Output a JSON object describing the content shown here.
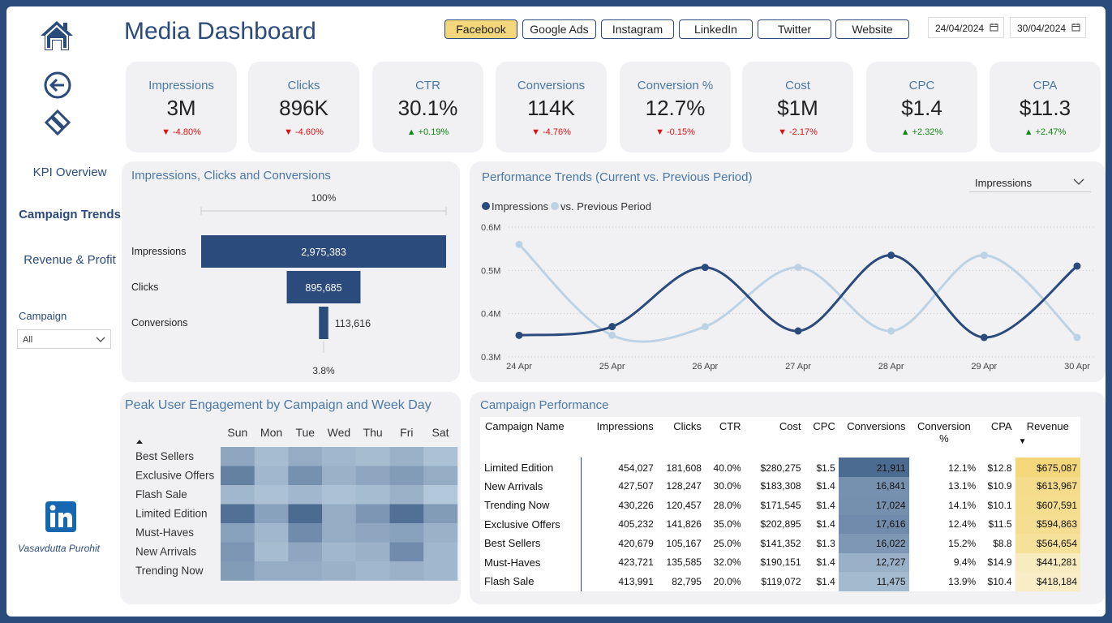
{
  "header": {
    "title": "Media Dashboard"
  },
  "sidebar": {
    "nav": [
      "KPI Overview",
      "Campaign Trends",
      "Revenue & Profit"
    ],
    "campaign_label": "Campaign",
    "campaign_value": "All",
    "author": "Vasavdutta Purohit",
    "icons": [
      "home-icon",
      "back-arrow-icon",
      "eraser-icon",
      "linkedin-icon"
    ]
  },
  "platforms": [
    "Facebook",
    "Google Ads",
    "Instagram",
    "LinkedIn",
    "Twitter",
    "Website"
  ],
  "platform_active": "Facebook",
  "dates": {
    "start": "24/04/2024",
    "end": "30/04/2024"
  },
  "kpis": [
    {
      "label": "Impressions",
      "value": "3M",
      "change": "-4.80%",
      "dir": "down"
    },
    {
      "label": "Clicks",
      "value": "896K",
      "change": "-4.60%",
      "dir": "down"
    },
    {
      "label": "CTR",
      "value": "30.1%",
      "change": "+0.19%",
      "dir": "up"
    },
    {
      "label": "Conversions",
      "value": "114K",
      "change": "-4.76%",
      "dir": "down"
    },
    {
      "label": "Conversion %",
      "value": "12.7%",
      "change": "-0.15%",
      "dir": "down"
    },
    {
      "label": "Cost",
      "value": "$1M",
      "change": "-2.17%",
      "dir": "down"
    },
    {
      "label": "CPC",
      "value": "$1.4",
      "change": "+2.32%",
      "dir": "up"
    },
    {
      "label": "CPA",
      "value": "$11.3",
      "change": "+2.47%",
      "dir": "up"
    }
  ],
  "colors": {
    "primary": "#2a4b7c",
    "accent": "#4a78a8",
    "light": "#bcd3e6",
    "highlight": "#f3d77a",
    "down": "#dd1111",
    "up": "#118811"
  },
  "funnel": {
    "title": "Impressions, Clicks and Conversions",
    "top_pct": "100%",
    "bottom_pct": "3.8%",
    "stages": [
      {
        "label": "Impressions",
        "value": 2975383,
        "display": "2,975,383"
      },
      {
        "label": "Clicks",
        "value": 895685,
        "display": "895,685"
      },
      {
        "label": "Conversions",
        "value": 113616,
        "display": "113,616"
      }
    ]
  },
  "trend": {
    "title": "Performance Trends (Current vs. Previous Period)",
    "dropdown": "Impressions",
    "legend": [
      "Impressions",
      "vs. Previous Period"
    ],
    "y_ticks": [
      "0.6M",
      "0.5M",
      "0.4M",
      "0.3M"
    ]
  },
  "chart_data": [
    {
      "type": "line",
      "title": "Performance Trends (Current vs. Previous Period)",
      "categories": [
        "24 Apr",
        "25 Apr",
        "26 Apr",
        "27 Apr",
        "28 Apr",
        "29 Apr",
        "30 Apr"
      ],
      "ylim": [
        0.3,
        0.6
      ],
      "y_unit": "M",
      "series": [
        {
          "name": "Impressions",
          "values": [
            0.35,
            0.37,
            0.507,
            0.36,
            0.535,
            0.345,
            0.51
          ]
        },
        {
          "name": "vs. Previous Period",
          "values": [
            0.56,
            0.35,
            0.37,
            0.507,
            0.36,
            0.535,
            0.345
          ]
        }
      ],
      "legend": "top-left"
    },
    {
      "type": "heatmap",
      "title": "Peak User Engagement by Campaign and Week Day",
      "columns": [
        "Sun",
        "Mon",
        "Tue",
        "Wed",
        "Thu",
        "Fri",
        "Sat"
      ],
      "rows": [
        "Best Sellers",
        "Exclusive Offers",
        "Flash Sale",
        "Limited Edition",
        "Must-Haves",
        "New Arrivals",
        "Trending Now"
      ],
      "intensity": [
        [
          0.45,
          0.25,
          0.4,
          0.3,
          0.25,
          0.35,
          0.2
        ],
        [
          0.8,
          0.3,
          0.65,
          0.35,
          0.45,
          0.55,
          0.4
        ],
        [
          0.3,
          0.2,
          0.3,
          0.2,
          0.25,
          0.35,
          0.15
        ],
        [
          0.95,
          0.5,
          1.0,
          0.4,
          0.6,
          0.95,
          0.55
        ],
        [
          0.5,
          0.3,
          0.7,
          0.4,
          0.45,
          0.5,
          0.35
        ],
        [
          0.6,
          0.25,
          0.45,
          0.3,
          0.35,
          0.7,
          0.3
        ],
        [
          0.55,
          0.4,
          0.4,
          0.35,
          0.3,
          0.35,
          0.3
        ]
      ]
    }
  ],
  "table": {
    "title": "Campaign Performance",
    "headers": [
      "Campaign Name",
      "Impressions",
      "Clicks",
      "CTR",
      "Cost",
      "CPC",
      "Conversions",
      "Conversion %",
      "CPA",
      "Revenue"
    ],
    "rows": [
      [
        "Limited Edition",
        "454,027",
        "181,608",
        "40.0%",
        "$280,275",
        "$1.5",
        "21,911",
        "12.1%",
        "$12.8",
        "$675,087"
      ],
      [
        "New Arrivals",
        "427,507",
        "128,247",
        "30.0%",
        "$183,308",
        "$1.4",
        "16,841",
        "13.1%",
        "$10.9",
        "$613,967"
      ],
      [
        "Trending Now",
        "430,226",
        "120,457",
        "28.0%",
        "$171,545",
        "$1.4",
        "17,024",
        "14.1%",
        "$10.1",
        "$607,591"
      ],
      [
        "Exclusive Offers",
        "405,232",
        "141,826",
        "35.0%",
        "$202,895",
        "$1.4",
        "17,616",
        "12.4%",
        "$11.5",
        "$594,863"
      ],
      [
        "Best Sellers",
        "420,679",
        "105,167",
        "25.0%",
        "$141,352",
        "$1.3",
        "16,022",
        "15.2%",
        "$8.8",
        "$564,654"
      ],
      [
        "Must-Haves",
        "423,721",
        "135,585",
        "32.0%",
        "$190,151",
        "$1.4",
        "12,727",
        "9.4%",
        "$14.9",
        "$441,281"
      ],
      [
        "Flash Sale",
        "413,991",
        "82,795",
        "20.0%",
        "$119,072",
        "$1.4",
        "11,475",
        "13.9%",
        "$10.4",
        "$418,184"
      ]
    ],
    "conversions_raw": [
      21911,
      16841,
      17024,
      17616,
      16022,
      12727,
      11475
    ],
    "revenue_raw": [
      675087,
      613967,
      607591,
      594863,
      564654,
      441281,
      418184
    ]
  }
}
